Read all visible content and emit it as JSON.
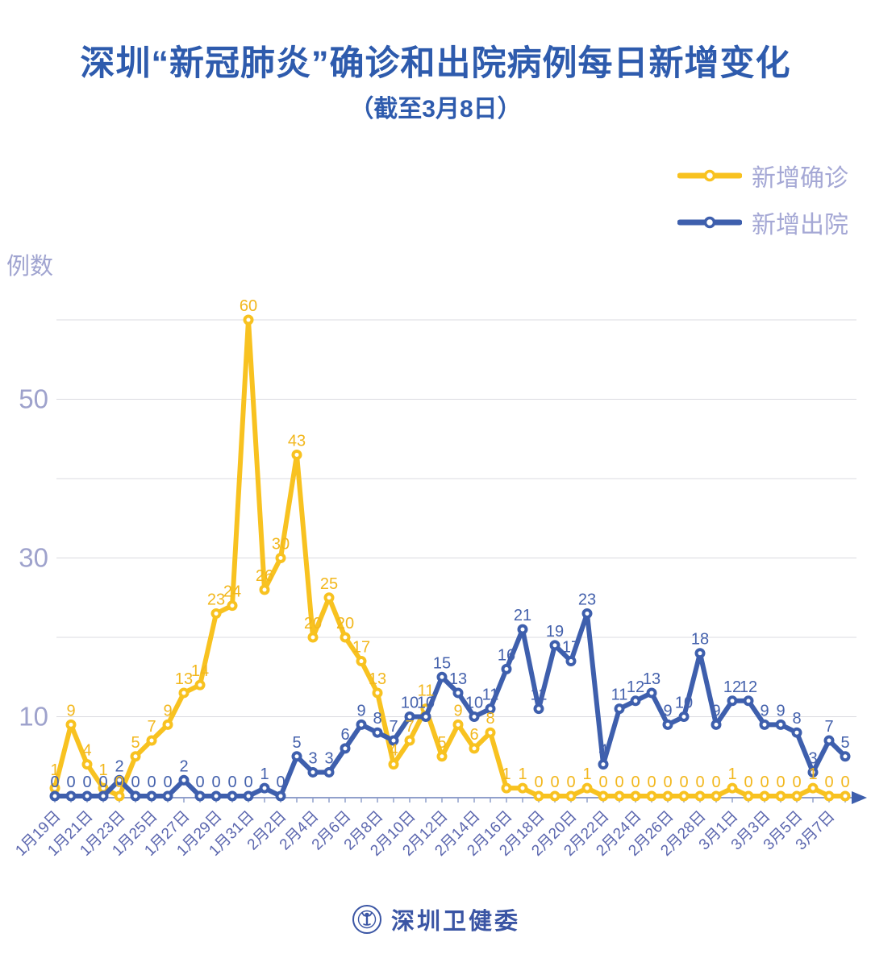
{
  "title": "深圳“新冠肺炎”确诊和出院病例每日新增变化",
  "subtitle": "（截至3月8日）",
  "y_axis_title": "例数",
  "legend": {
    "confirmed_label": "新增确诊",
    "discharged_label": "新增出院"
  },
  "footer": {
    "org_name": "深圳卫健委"
  },
  "colors": {
    "confirmed": "#f8c220",
    "confirmed_label": "#f2b71d",
    "discharged": "#3e5fad",
    "discharged_label": "#4461ac",
    "title_blue": "#2e5bad",
    "legend_text": "#a5a8d5",
    "ytick_text": "#9ea2cc",
    "xtick_text": "#5b66ae",
    "gridline": "#dbdbe0",
    "axis": "#91a0cb"
  },
  "chart_data": {
    "type": "line",
    "title": "深圳“新冠肺炎”确诊和出院病例每日新增变化（截至3月8日）",
    "xlabel": "",
    "ylabel": "例数",
    "ylim": [
      0,
      62
    ],
    "grid": "horizontal-only",
    "gridlines": [
      10,
      20,
      30,
      40,
      50,
      60
    ],
    "ytick_labels": [
      10,
      30,
      50
    ],
    "x_label_step": 2,
    "legend_position": "top-right",
    "x": [
      "1月19日",
      "1月20日",
      "1月21日",
      "1月22日",
      "1月23日",
      "1月24日",
      "1月25日",
      "1月26日",
      "1月27日",
      "1月28日",
      "1月29日",
      "1月30日",
      "1月31日",
      "2月1日",
      "2月2日",
      "2月3日",
      "2月4日",
      "2月5日",
      "2月6日",
      "2月7日",
      "2月8日",
      "2月9日",
      "2月10日",
      "2月11日",
      "2月12日",
      "2月13日",
      "2月14日",
      "2月15日",
      "2月16日",
      "2月17日",
      "2月18日",
      "2月19日",
      "2月20日",
      "2月21日",
      "2月22日",
      "2月23日",
      "2月24日",
      "2月25日",
      "2月26日",
      "2月27日",
      "2月28日",
      "2月29日",
      "3月1日",
      "3月2日",
      "3月3日",
      "3月4日",
      "3月5日",
      "3月6日",
      "3月7日",
      "3月8日"
    ],
    "series": [
      {
        "name": "新增确诊",
        "color": "#f8c220",
        "label_color": "#f2b71d",
        "values": [
          1,
          9,
          4,
          1,
          0,
          5,
          7,
          9,
          13,
          14,
          23,
          24,
          60,
          26,
          30,
          43,
          20,
          25,
          20,
          17,
          13,
          4,
          7,
          11,
          5,
          9,
          6,
          8,
          1,
          1,
          0,
          0,
          0,
          1,
          0,
          0,
          0,
          0,
          0,
          0,
          0,
          0,
          1,
          0,
          0,
          0,
          0,
          1,
          0,
          0
        ]
      },
      {
        "name": "新增出院",
        "color": "#3e5fad",
        "label_color": "#4461ac",
        "values": [
          0,
          0,
          0,
          0,
          2,
          0,
          0,
          0,
          2,
          0,
          0,
          0,
          0,
          1,
          0,
          5,
          3,
          3,
          6,
          9,
          8,
          7,
          10,
          10,
          15,
          13,
          10,
          11,
          16,
          21,
          11,
          19,
          17,
          23,
          4,
          11,
          12,
          13,
          9,
          10,
          18,
          9,
          12,
          12,
          9,
          9,
          8,
          3,
          7,
          5
        ]
      }
    ]
  }
}
